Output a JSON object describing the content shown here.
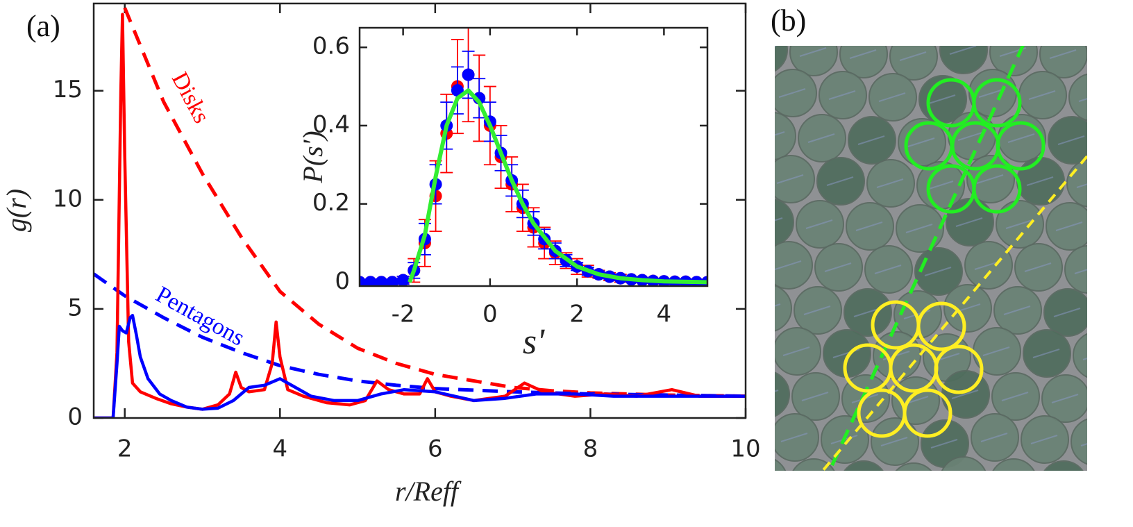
{
  "panel_labels": [
    "(a)",
    "(b)"
  ],
  "chart_data": [
    {
      "type": "line",
      "x_label": "r/Reff",
      "y_label": "g(r)",
      "xlim": [
        1.6,
        10
      ],
      "ylim": [
        0,
        19
      ],
      "xticks": [
        2,
        4,
        6,
        8,
        10
      ],
      "yticks": [
        0,
        5,
        10,
        15
      ],
      "series": [
        {
          "name": "Disks",
          "color": "#ff0000",
          "x": [
            1.6,
            1.85,
            1.9,
            1.95,
            1.97,
            2.0,
            2.05,
            2.1,
            2.2,
            2.4,
            2.6,
            2.8,
            3.0,
            3.2,
            3.35,
            3.43,
            3.5,
            3.6,
            3.8,
            3.9,
            3.95,
            4.0,
            4.1,
            4.3,
            4.6,
            4.9,
            5.1,
            5.25,
            5.4,
            5.6,
            5.8,
            5.9,
            6.0,
            6.2,
            6.5,
            6.9,
            7.15,
            7.4,
            7.8,
            8.2,
            8.6,
            9.05,
            9.4,
            9.8,
            10
          ],
          "values": [
            0,
            0,
            3,
            15,
            18.5,
            12,
            3.5,
            1.6,
            1.2,
            0.9,
            0.65,
            0.5,
            0.4,
            0.6,
            1.1,
            2.1,
            1.4,
            1.2,
            1.3,
            2.5,
            4.4,
            2.8,
            1.3,
            1.0,
            0.7,
            0.6,
            0.8,
            1.7,
            1.3,
            1.1,
            1.1,
            1.8,
            1.2,
            1.0,
            0.8,
            1.0,
            1.6,
            1.2,
            1.0,
            1.1,
            1.0,
            1.3,
            1.0,
            1.0,
            1.0
          ]
        },
        {
          "name": "Pentagons",
          "color": "#0000ff",
          "x": [
            1.6,
            1.85,
            1.9,
            1.93,
            1.97,
            2.02,
            2.07,
            2.1,
            2.15,
            2.2,
            2.3,
            2.45,
            2.6,
            2.8,
            3.0,
            3.2,
            3.4,
            3.6,
            3.8,
            4.0,
            4.2,
            4.4,
            4.7,
            5.0,
            5.3,
            5.6,
            6.0,
            6.5,
            6.9,
            7.3,
            7.8,
            8.3,
            9.0,
            9.5,
            10
          ],
          "values": [
            0,
            0,
            2.5,
            4.2,
            4.0,
            3.9,
            4.6,
            4.7,
            3.8,
            2.8,
            1.8,
            1.1,
            0.8,
            0.5,
            0.4,
            0.45,
            0.8,
            1.4,
            1.5,
            1.8,
            1.4,
            1.0,
            0.8,
            0.8,
            1.1,
            1.3,
            1.2,
            0.8,
            0.9,
            1.1,
            1.1,
            1.0,
            1.0,
            1.0,
            1.0
          ]
        },
        {
          "color": "#ff0000",
          "dashed": true,
          "x": [
            2,
            2.5,
            3,
            3.5,
            4,
            4.5,
            5,
            5.5,
            6,
            6.5,
            7,
            7.5,
            8,
            9,
            10
          ],
          "values": [
            18.8,
            14.5,
            11.2,
            8.3,
            5.8,
            4.3,
            3.2,
            2.5,
            2.0,
            1.7,
            1.4,
            1.25,
            1.15,
            1.05,
            1.0
          ]
        },
        {
          "color": "#0000ff",
          "dashed": true,
          "x": [
            1.6,
            2,
            2.5,
            3,
            3.5,
            4,
            4.5,
            5,
            5.5,
            6,
            7,
            8,
            9,
            10
          ],
          "values": [
            6.6,
            5.6,
            4.6,
            3.7,
            3.0,
            2.4,
            2.0,
            1.7,
            1.5,
            1.35,
            1.2,
            1.1,
            1.05,
            1.0
          ]
        }
      ]
    },
    {
      "type": "errorbar",
      "x_label": "s'",
      "y_label": "P(s')",
      "xlim": [
        -3,
        5
      ],
      "ylim": [
        -0.01,
        0.65
      ],
      "xticks": [
        -2,
        0,
        2,
        4
      ],
      "yticks": [
        0,
        0.2,
        0.4,
        0.6
      ],
      "x": [
        -3,
        -2.75,
        -2.5,
        -2.25,
        -2,
        -1.75,
        -1.5,
        -1.25,
        -1,
        -0.75,
        -0.5,
        -0.25,
        0,
        0.25,
        0.5,
        0.75,
        1,
        1.25,
        1.5,
        1.75,
        2,
        2.25,
        2.5,
        2.75,
        3,
        3.25,
        3.5,
        3.75,
        4,
        4.25,
        4.5,
        4.75,
        5
      ],
      "series": [
        {
          "color": "#ff0000",
          "values": [
            0,
            0,
            0,
            0,
            0.005,
            0.03,
            0.1,
            0.22,
            0.38,
            0.5,
            0.53,
            0.47,
            0.4,
            0.32,
            0.25,
            0.19,
            0.14,
            0.1,
            0.075,
            0.055,
            0.04,
            0.028,
            0.02,
            0.014,
            0.01,
            0.007,
            0.005,
            0.003,
            0.002,
            0.001,
            0.001,
            0,
            0
          ],
          "errors": [
            0,
            0,
            0,
            0,
            0.01,
            0.03,
            0.06,
            0.09,
            0.1,
            0.12,
            0.12,
            0.11,
            0.1,
            0.08,
            0.07,
            0.06,
            0.05,
            0.04,
            0.03,
            0.02,
            0.02,
            0.015,
            0.01,
            0.01,
            0.01,
            0.005,
            0.005,
            0.005,
            0.005,
            0,
            0,
            0,
            0
          ]
        },
        {
          "color": "#0000ff",
          "values": [
            0,
            0,
            0,
            0,
            0.005,
            0.03,
            0.11,
            0.25,
            0.4,
            0.49,
            0.53,
            0.47,
            0.41,
            0.33,
            0.26,
            0.2,
            0.15,
            0.11,
            0.08,
            0.055,
            0.04,
            0.028,
            0.02,
            0.014,
            0.01,
            0.007,
            0.005,
            0.003,
            0.002,
            0.001,
            0.001,
            0,
            0
          ],
          "errors": [
            0,
            0,
            0,
            0,
            0.01,
            0.02,
            0.04,
            0.05,
            0.06,
            0.06,
            0.06,
            0.05,
            0.05,
            0.045,
            0.04,
            0.035,
            0.03,
            0.025,
            0.02,
            0.015,
            0.01,
            0.01,
            0.008,
            0.006,
            0.005,
            0.004,
            0.003,
            0.003,
            0.002,
            0.002,
            0.001,
            0.001,
            0.001
          ]
        },
        {
          "color": "#33ee33",
          "fit": true,
          "x": [
            -1.85,
            -1.75,
            -1.5,
            -1.25,
            -1,
            -0.75,
            -0.5,
            -0.25,
            0,
            0.25,
            0.5,
            0.75,
            1,
            1.5,
            2,
            2.5,
            3,
            3.5,
            4,
            5
          ],
          "values": [
            0,
            0.03,
            0.12,
            0.27,
            0.4,
            0.47,
            0.49,
            0.46,
            0.4,
            0.33,
            0.26,
            0.2,
            0.15,
            0.08,
            0.04,
            0.02,
            0.01,
            0.005,
            0.002,
            0
          ]
        }
      ]
    }
  ]
}
